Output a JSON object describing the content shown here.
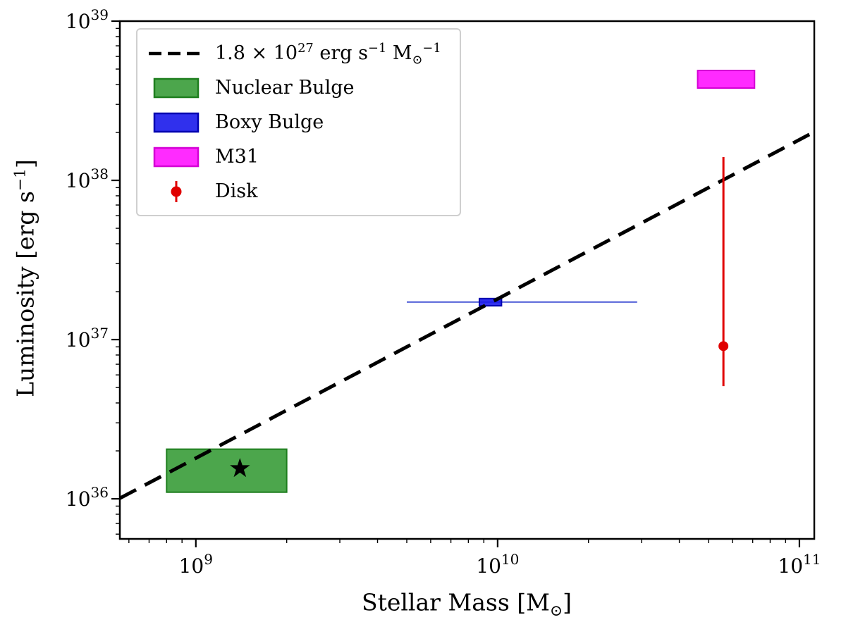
{
  "chart_data": {
    "type": "scatter",
    "title": "",
    "xlabel": "Stellar Mass [M⊙]",
    "ylabel": "Luminosity [erg s⁻¹]",
    "x_scale": "log",
    "y_scale": "log",
    "xlim": [
      560000000.0,
      112000000000.0
    ],
    "ylim": [
      5.6e+35,
      1e+39
    ],
    "grid": false,
    "legend_position": "upper-left",
    "x_major_ticks": [
      1000000000.0,
      10000000000.0,
      100000000000.0
    ],
    "x_major_tick_exponents": [
      "9",
      "10",
      "11"
    ],
    "y_major_ticks": [
      1e+36,
      1e+37,
      1e+38,
      1e+39
    ],
    "y_major_tick_exponents": [
      "36",
      "37",
      "38",
      "39"
    ],
    "axis_labels": {
      "x_segments": [
        {
          "t": "Stellar Mass [M"
        },
        {
          "t": "⊙",
          "sub": true
        },
        {
          "t": "]"
        }
      ],
      "y_segments": [
        {
          "t": "Luminosity [erg s"
        },
        {
          "t": "−1",
          "sup": true
        },
        {
          "t": "]"
        }
      ]
    },
    "reference_line": {
      "label": "1.8 × 10²⁷ erg s⁻¹ M⊙⁻¹",
      "luminosity_per_mass": 1.8e+27,
      "style": "dashed",
      "color": "#000000"
    },
    "regions": [
      {
        "label": "Nuclear Bulge",
        "x_range": [
          800000000.0,
          2000000000.0
        ],
        "y_range": [
          1.1e+36,
          2.05e+36
        ],
        "fill": "rgba(0,128,0,0.7)",
        "edge": "#1e7e1e",
        "marker": {
          "shape": "star",
          "x": 1400000000.0,
          "y": 1.55e+36,
          "color": "#000000"
        }
      },
      {
        "label": "Boxy Bulge",
        "x_range": [
          8700000000.0,
          10300000000.0
        ],
        "y_range": [
          1.63e+37,
          1.81e+37
        ],
        "fill": "rgba(25,25,235,0.9)",
        "edge": "#0000b0",
        "x_errorbar": {
          "x_range": [
            5000000000.0,
            29000000000.0
          ],
          "y": 1.72e+37,
          "color": "#2233cc"
        }
      },
      {
        "label": "M31",
        "x_range": [
          46000000000.0,
          71000000000.0
        ],
        "y_range": [
          3.8e+38,
          4.9e+38
        ],
        "fill": "rgba(255,20,255,0.9)",
        "edge": "#d400d4"
      }
    ],
    "points": [
      {
        "label": "Disk",
        "x": 56000000000.0,
        "y": 9.1e+36,
        "y_errorbar": [
          5.1e+36,
          1.4e+38
        ],
        "marker": "circle",
        "color": "#e00000"
      }
    ],
    "legend": {
      "items": [
        {
          "swatch": "dashed-line",
          "color": "#000000",
          "label": "1.8 × 10²⁷ erg s⁻¹ M⊙⁻¹",
          "segments": [
            {
              "t": "1.8 × 10"
            },
            {
              "t": "27",
              "sup": true
            },
            {
              "t": " erg s"
            },
            {
              "t": "−1",
              "sup": true
            },
            {
              "t": " M"
            },
            {
              "t": "⊙",
              "sub": true
            },
            {
              "t": "−1",
              "sup": true
            }
          ]
        },
        {
          "swatch": "patch",
          "fill": "rgba(0,128,0,0.7)",
          "edge": "#1e7e1e",
          "label": "Nuclear Bulge",
          "segments": [
            {
              "t": "Nuclear Bulge"
            }
          ]
        },
        {
          "swatch": "patch",
          "fill": "rgba(25,25,235,0.9)",
          "edge": "#0000b0",
          "label": "Boxy Bulge",
          "segments": [
            {
              "t": "Boxy Bulge"
            }
          ]
        },
        {
          "swatch": "patch",
          "fill": "rgba(255,20,255,0.9)",
          "edge": "#d400d4",
          "label": "M31",
          "segments": [
            {
              "t": "M31"
            }
          ]
        },
        {
          "swatch": "errorbar-point",
          "color": "#e00000",
          "label": "Disk",
          "segments": [
            {
              "t": "Disk"
            }
          ]
        }
      ]
    },
    "plot_colors": {
      "axes": "#000000",
      "background": "#ffffff",
      "legend_border": "#cfcfcf"
    }
  }
}
